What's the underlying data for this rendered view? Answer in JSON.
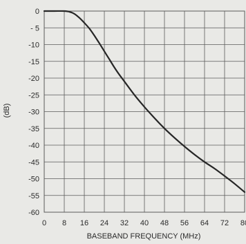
{
  "chart_data": {
    "type": "line",
    "title": "",
    "xlabel": "BASEBAND FREQUENCY (MHz)",
    "ylabel": "(dB)",
    "xlim": [
      0,
      80
    ],
    "ylim": [
      -60,
      0
    ],
    "xticks": [
      0,
      8,
      16,
      24,
      32,
      40,
      48,
      56,
      64,
      72,
      80
    ],
    "xtick_labels": [
      "0",
      "8",
      "16",
      "24",
      "32",
      "40",
      "48",
      "56",
      "64",
      "72",
      "80"
    ],
    "yticks": [
      0,
      -5,
      -10,
      -15,
      -20,
      -25,
      -30,
      -35,
      -40,
      -45,
      -50,
      -55,
      -60
    ],
    "ytick_labels": [
      "0",
      "- 5",
      "-10",
      "-15",
      "-20",
      "-25",
      "-30",
      "-35",
      "-40",
      "-45",
      "-50",
      "-55",
      "-60"
    ],
    "grid": true,
    "legend": "none",
    "colors": {
      "line": "#262626",
      "grid": "#5a5a5a",
      "background": "#e9e9e6"
    },
    "series": [
      {
        "x": [
          0,
          4,
          8,
          10,
          12,
          14,
          16,
          18,
          20,
          22,
          24,
          26,
          28,
          30,
          32,
          36,
          40,
          44,
          48,
          52,
          56,
          60,
          64,
          68,
          72,
          76,
          80
        ],
        "y": [
          0,
          0,
          0,
          -0.2,
          -0.8,
          -2,
          -3.5,
          -5.2,
          -7.3,
          -9.6,
          -12,
          -14.4,
          -16.8,
          -19,
          -21,
          -25,
          -28.6,
          -31.9,
          -35,
          -37.8,
          -40.4,
          -42.8,
          -45,
          -47,
          -49.2,
          -51.5,
          -54
        ]
      }
    ]
  }
}
